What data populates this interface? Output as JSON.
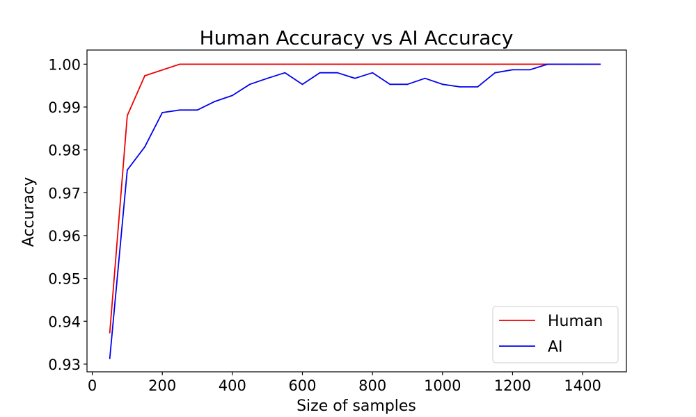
{
  "chart_data": {
    "type": "line",
    "title": "Human Accuracy vs AI Accuracy",
    "xlabel": "Size of samples",
    "ylabel": "Accuracy",
    "xlim": [
      -15,
      1525
    ],
    "ylim": [
      0.9282,
      1.0033
    ],
    "xticks": [
      0,
      200,
      400,
      600,
      800,
      1000,
      1200,
      1400
    ],
    "xtick_labels": [
      "0",
      "200",
      "400",
      "600",
      "800",
      "1000",
      "1200",
      "1400"
    ],
    "yticks": [
      0.93,
      0.94,
      0.95,
      0.96,
      0.97,
      0.98,
      0.99,
      1.0
    ],
    "ytick_labels": [
      "0.93",
      "0.94",
      "0.95",
      "0.96",
      "0.97",
      "0.98",
      "0.99",
      "1.00"
    ],
    "grid": false,
    "legend_position": "lower-right",
    "series": [
      {
        "name": "Human",
        "color": "#ee0000",
        "x": [
          50,
          100,
          150,
          250,
          300,
          350,
          400,
          450,
          500,
          550,
          600,
          650,
          700,
          750,
          800,
          850,
          900,
          950,
          1000,
          1050,
          1100,
          1150,
          1200,
          1250,
          1300,
          1350,
          1400,
          1450
        ],
        "y": [
          0.9373,
          0.988,
          0.9973,
          1.0,
          1.0,
          1.0,
          1.0,
          1.0,
          1.0,
          1.0,
          1.0,
          1.0,
          1.0,
          1.0,
          1.0,
          1.0,
          1.0,
          1.0,
          1.0,
          1.0,
          1.0,
          1.0,
          1.0,
          1.0,
          1.0,
          1.0,
          1.0,
          1.0
        ]
      },
      {
        "name": "AI",
        "color": "#0000ee",
        "x": [
          50,
          100,
          150,
          200,
          250,
          300,
          350,
          400,
          450,
          500,
          550,
          600,
          650,
          700,
          750,
          800,
          850,
          900,
          950,
          1000,
          1050,
          1100,
          1150,
          1200,
          1250,
          1300,
          1350,
          1400,
          1450
        ],
        "y": [
          0.9313,
          0.9753,
          0.9807,
          0.9887,
          0.9893,
          0.9893,
          0.9913,
          0.9927,
          0.9953,
          0.9967,
          0.998,
          0.9953,
          0.998,
          0.998,
          0.9967,
          0.998,
          0.9953,
          0.9953,
          0.9967,
          0.9953,
          0.9947,
          0.9947,
          0.998,
          0.9987,
          0.9987,
          1.0,
          1.0,
          1.0,
          1.0
        ]
      }
    ]
  }
}
